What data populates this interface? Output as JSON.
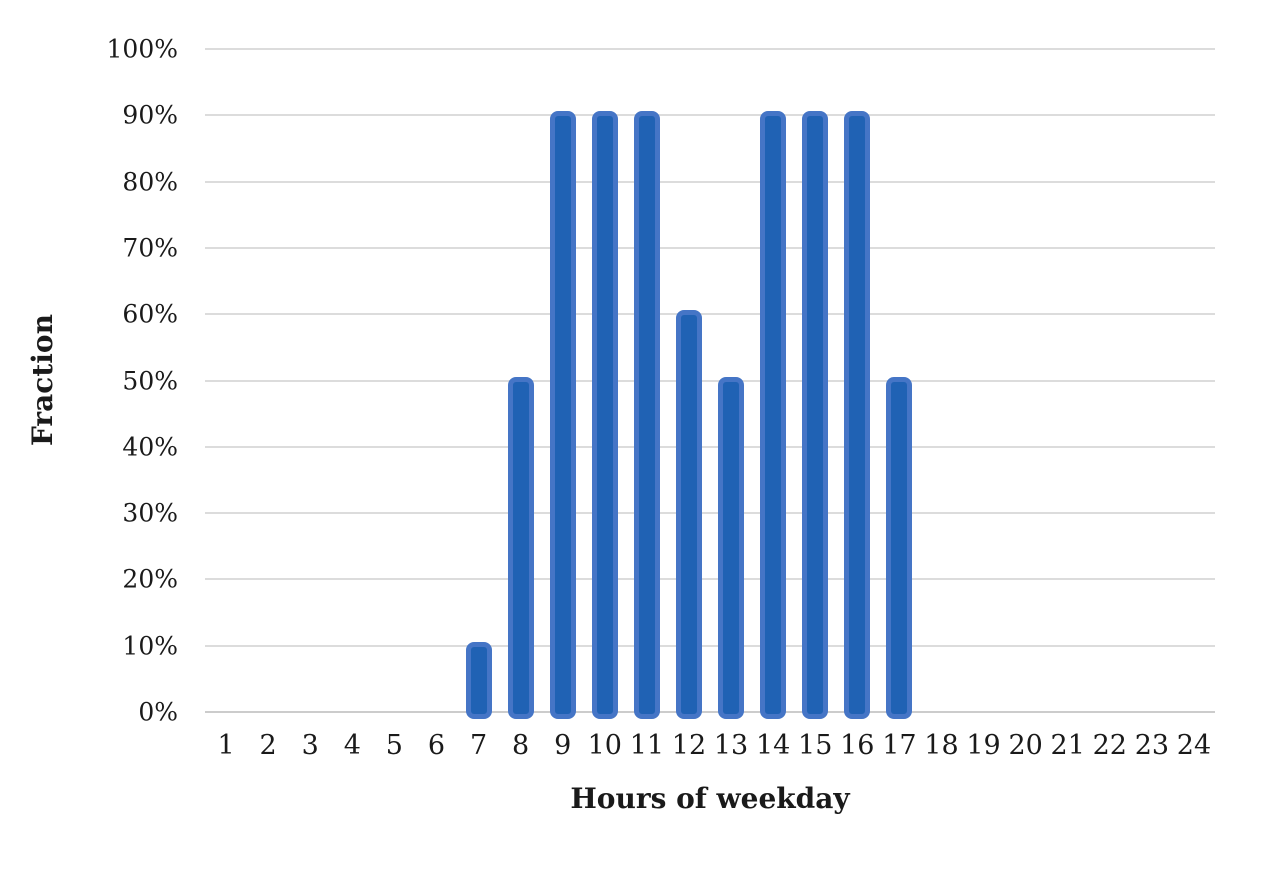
{
  "chart_data": {
    "type": "bar",
    "title": "",
    "xlabel": "Hours of weekday",
    "ylabel": "Fraction",
    "categories": [
      "1",
      "2",
      "3",
      "4",
      "5",
      "6",
      "7",
      "8",
      "9",
      "10",
      "11",
      "12",
      "13",
      "14",
      "15",
      "16",
      "17",
      "18",
      "19",
      "20",
      "21",
      "22",
      "23",
      "24"
    ],
    "values": [
      0,
      0,
      0,
      0,
      0,
      0,
      10,
      50,
      90,
      90,
      90,
      60,
      50,
      90,
      90,
      90,
      50,
      0,
      0,
      0,
      0,
      0,
      0,
      0
    ],
    "value_unit": "%",
    "ylim": [
      0,
      100
    ],
    "ytick_step": 10,
    "ytick_labels": [
      "0%",
      "10%",
      "20%",
      "30%",
      "40%",
      "50%",
      "60%",
      "70%",
      "80%",
      "90%",
      "100%"
    ],
    "grid": true,
    "legend_position": "none",
    "colors": {
      "bar_fill": "#2062b4",
      "bar_border": "#4575c6",
      "gridline": "#dcdcdc",
      "axis_line": "#cccccc",
      "text": "#1a1a1a",
      "background": "#ffffff"
    }
  }
}
